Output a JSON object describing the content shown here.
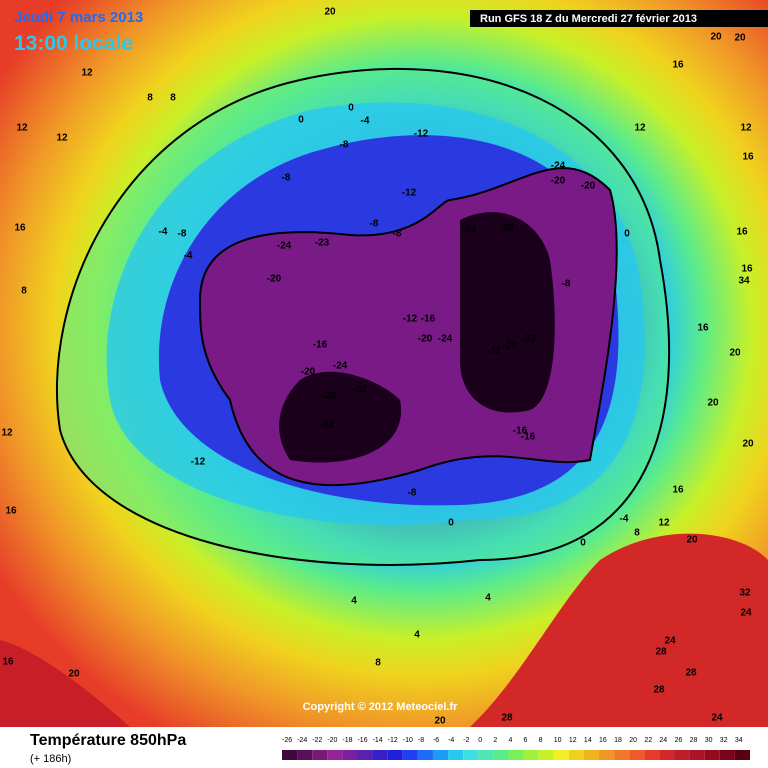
{
  "header": {
    "date": "Jeudi 7 mars 2013",
    "time": "13:00 locale",
    "run": "Run GFS 18 Z du Mercredi 27 février 2013"
  },
  "footer": {
    "title": "Température 850hPa",
    "lead": "(+ 186h)",
    "copyright": "Copyright © 2012 Meteociel.fr"
  },
  "legend": {
    "labels": [
      -26,
      -24,
      -22,
      -20,
      -18,
      -16,
      -14,
      -12,
      -10,
      -8,
      -6,
      -4,
      -2,
      0,
      2,
      4,
      6,
      8,
      10,
      12,
      14,
      16,
      18,
      20,
      22,
      24,
      26,
      28,
      30,
      32,
      34
    ],
    "colors": [
      "#3d0a3d",
      "#5a0f5a",
      "#781a78",
      "#962296",
      "#7a1fa0",
      "#5a20b0",
      "#3a1fc8",
      "#2020d8",
      "#1e40f0",
      "#1e6cf5",
      "#1e9cf5",
      "#28c8f0",
      "#3ce0e0",
      "#50e6b4",
      "#5aeb8c",
      "#78f05a",
      "#a0f03c",
      "#c8f028",
      "#f0f028",
      "#f0d21e",
      "#f0b41e",
      "#f09628",
      "#f07828",
      "#f05a28",
      "#e63c28",
      "#d22828",
      "#be1e28",
      "#aa1428",
      "#960a1e",
      "#78051a",
      "#5a0010"
    ]
  },
  "map": {
    "labels": [
      12,
      8,
      8,
      12,
      12,
      0,
      0,
      -4,
      -12,
      -8,
      -8,
      -12,
      -4,
      -8,
      -4,
      -24,
      -23,
      -20,
      -8,
      -8,
      -24,
      -28,
      -24,
      -20,
      -20,
      0,
      -8,
      -12,
      -16,
      -20,
      -24,
      -32,
      -28,
      -32,
      -16,
      -20,
      -24,
      -32,
      -28,
      -32,
      -16,
      -16,
      -12,
      -8,
      0,
      0,
      -4,
      8,
      12,
      16,
      20,
      20,
      20,
      16,
      16,
      34,
      20,
      20,
      16,
      12,
      16,
      16,
      12,
      16,
      8,
      12,
      16,
      16,
      20,
      28,
      28,
      28,
      24,
      28,
      20,
      8,
      4,
      4,
      4,
      20,
      24,
      20,
      32,
      24
    ]
  }
}
